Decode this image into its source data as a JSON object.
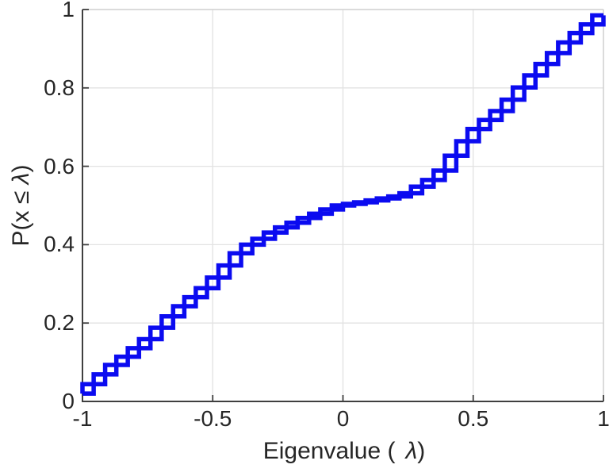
{
  "figure": {
    "xlabel_prefix": "Eigenvalue (",
    "xlabel_symbol": "λ",
    "xlabel_suffix": ")",
    "ylabel_prefix": "P(x ≤ ",
    "ylabel_symbol": "λ",
    "ylabel_suffix": ")"
  },
  "colors": {
    "line": "#0b0bf0",
    "axis": "#3f3f3f",
    "grid": "#e2e2e2",
    "box_light": "#cfcfcf",
    "text": "#262626",
    "background": "#ffffff"
  },
  "chart_data": {
    "type": "line",
    "subtype": "double-stairs-empirical-cdf",
    "title": "",
    "xlabel": "Eigenvalue ( λ)",
    "ylabel": "P(x ≤ λ)",
    "xlim": [
      -1,
      1
    ],
    "ylim": [
      0,
      1
    ],
    "grid": true,
    "legend": "none",
    "xtick_labels": [
      "-1",
      "-0.5",
      "0",
      "0.5",
      "1"
    ],
    "xtick_values": [
      -1,
      -0.5,
      0,
      0.5,
      1
    ],
    "ytick_labels": [
      "0",
      "0.2",
      "0.4",
      "0.6",
      "0.8",
      "1"
    ],
    "ytick_values": [
      0,
      0.2,
      0.4,
      0.6,
      0.8,
      1
    ],
    "x": [
      -1.0,
      -0.957,
      -0.913,
      -0.87,
      -0.826,
      -0.783,
      -0.739,
      -0.696,
      -0.652,
      -0.609,
      -0.565,
      -0.522,
      -0.478,
      -0.435,
      -0.391,
      -0.348,
      -0.304,
      -0.261,
      -0.217,
      -0.174,
      -0.13,
      -0.087,
      -0.043,
      0.0,
      0.043,
      0.087,
      0.13,
      0.174,
      0.217,
      0.261,
      0.304,
      0.348,
      0.391,
      0.435,
      0.478,
      0.522,
      0.565,
      0.609,
      0.652,
      0.696,
      0.739,
      0.783,
      0.826,
      0.87,
      0.913,
      0.957,
      1.0
    ],
    "y": [
      0.02,
      0.044,
      0.069,
      0.093,
      0.114,
      0.136,
      0.159,
      0.188,
      0.217,
      0.243,
      0.266,
      0.289,
      0.316,
      0.347,
      0.378,
      0.4,
      0.415,
      0.431,
      0.444,
      0.456,
      0.468,
      0.479,
      0.49,
      0.5,
      0.504,
      0.508,
      0.513,
      0.518,
      0.523,
      0.531,
      0.548,
      0.565,
      0.589,
      0.627,
      0.664,
      0.695,
      0.718,
      0.741,
      0.77,
      0.801,
      0.832,
      0.861,
      0.889,
      0.916,
      0.94,
      0.962,
      0.985
    ]
  }
}
